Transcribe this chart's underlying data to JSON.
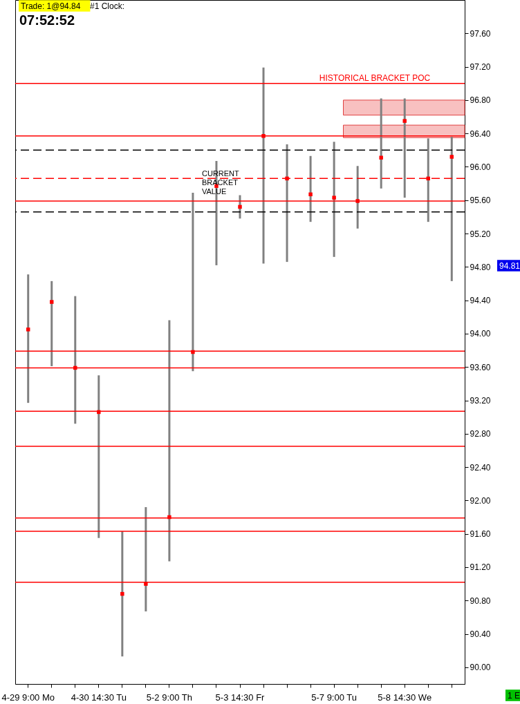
{
  "chart_data": {
    "type": "bar",
    "categories": [
      "4-29  9:00 Mo",
      null,
      null,
      "4-30  14:30 Tu",
      null,
      null,
      "5-2  9:00 Th",
      null,
      null,
      "5-3  14:30 Fr",
      null,
      null,
      null,
      "5-7  9:00 Tu",
      null,
      null,
      "5-8  14:30 We",
      null,
      null
    ],
    "series": [
      {
        "color": "#808080",
        "base": [
          93.17,
          93.61,
          92.92,
          91.55,
          90.13,
          90.67,
          91.27,
          93.55,
          94.82,
          95.38,
          94.84,
          94.86,
          95.34,
          94.92,
          95.26,
          95.74,
          95.63,
          95.34,
          94.63
        ],
        "values": [
          1.54,
          1.02,
          1.53,
          1.95,
          1.5,
          1.25,
          2.89,
          2.14,
          1.25,
          0.28,
          2.35,
          1.41,
          0.79,
          1.38,
          0.75,
          1.08,
          1.19,
          1.0,
          1.73
        ]
      },
      {
        "type": "scatter",
        "color": "#ff0000",
        "marker": "square",
        "values": [
          94.05,
          94.38,
          93.59,
          93.06,
          90.88,
          91.0,
          91.8,
          93.78,
          95.77,
          95.52,
          96.37,
          95.86,
          95.67,
          95.63,
          95.59,
          96.11,
          96.55,
          95.86,
          96.12
        ]
      }
    ],
    "ylim": [
      89.8,
      98.0
    ],
    "yticks": [
      {
        "value": 90.0,
        "label": "90.00"
      },
      {
        "value": 90.4,
        "label": "90.40"
      },
      {
        "value": 90.8,
        "label": "90.80"
      },
      {
        "value": 91.2,
        "label": "91.20"
      },
      {
        "value": 91.6,
        "label": "91.60"
      },
      {
        "value": 92.0,
        "label": "92.00"
      },
      {
        "value": 92.4,
        "label": "92.40"
      },
      {
        "value": 92.8,
        "label": "92.80"
      },
      {
        "value": 93.2,
        "label": "93.20"
      },
      {
        "value": 93.6,
        "label": "93.60"
      },
      {
        "value": 94.0,
        "label": "94.00"
      },
      {
        "value": 94.4,
        "label": "94.40"
      },
      {
        "value": 94.8,
        "label": "94.80"
      },
      {
        "value": 95.2,
        "label": "95.20"
      },
      {
        "value": 95.6,
        "label": "95.60"
      },
      {
        "value": 96.0,
        "label": "96.00"
      },
      {
        "value": 96.4,
        "label": "96.40"
      },
      {
        "value": 96.8,
        "label": "96.80"
      },
      {
        "value": 97.2,
        "label": "97.20"
      },
      {
        "value": 97.6,
        "label": "97.60"
      }
    ],
    "ref_lines": [
      {
        "axis": "y",
        "value": 97.0,
        "label": "HISTORICAL BRACKET POC",
        "color": "#ff0000"
      },
      {
        "axis": "y",
        "value": 96.37,
        "color": "#ff0000"
      },
      {
        "axis": "y",
        "value": 95.59,
        "color": "#ff0000"
      },
      {
        "axis": "y",
        "value": 93.79,
        "color": "#ff0000"
      },
      {
        "axis": "y",
        "value": 93.59,
        "color": "#ff0000"
      },
      {
        "axis": "y",
        "value": 93.07,
        "color": "#ff0000"
      },
      {
        "axis": "y",
        "value": 92.65,
        "color": "#ff0000"
      },
      {
        "axis": "y",
        "value": 91.79,
        "color": "#ff0000"
      },
      {
        "axis": "y",
        "value": 91.63,
        "color": "#ff0000"
      },
      {
        "axis": "y",
        "value": 91.02,
        "color": "#ff0000"
      },
      {
        "axis": "y",
        "value": 95.86,
        "color": "#ff0000",
        "line_style": "dashed"
      },
      {
        "axis": "y",
        "value": 96.2,
        "color": "#000000",
        "line_style": "dashed"
      },
      {
        "axis": "y",
        "value": 95.46,
        "color": "#000000",
        "line_style": "dashed"
      }
    ],
    "bands": [
      {
        "axis": "y",
        "from": 96.62,
        "to": 96.8,
        "color": "#f8c0c0"
      },
      {
        "axis": "y",
        "from": 96.35,
        "to": 96.5,
        "color": "#f8c0c0"
      }
    ],
    "annotations": [
      "Trade: 1@94.84",
      "#1 Clock:",
      "07:52:52",
      "CURRENT BRACKET VALUE",
      "1 E",
      "94.81"
    ],
    "grid": false
  }
}
